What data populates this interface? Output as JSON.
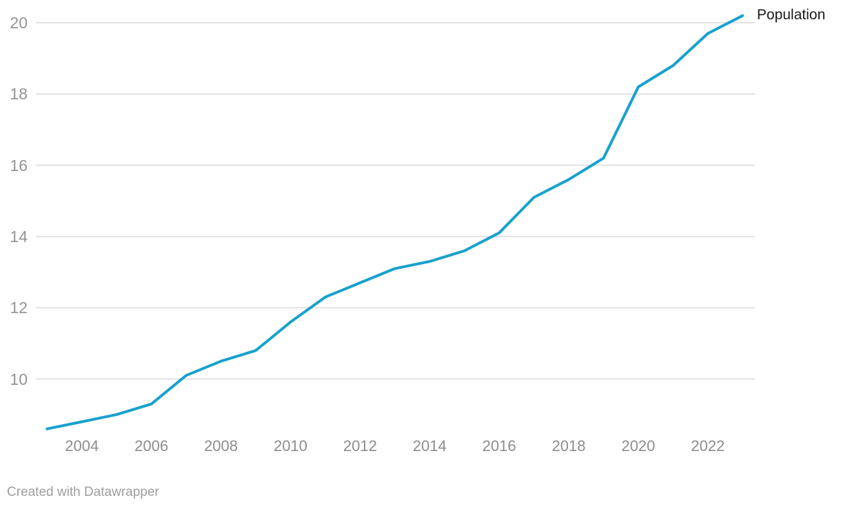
{
  "chart_data": {
    "type": "line",
    "title": "",
    "xlabel": "",
    "ylabel": "",
    "x": [
      2003,
      2004,
      2005,
      2006,
      2007,
      2008,
      2009,
      2010,
      2011,
      2012,
      2013,
      2014,
      2015,
      2016,
      2017,
      2018,
      2019,
      2020,
      2021,
      2022,
      2023
    ],
    "series": [
      {
        "name": "Population",
        "values": [
          8.6,
          8.8,
          9.0,
          9.3,
          10.1,
          10.5,
          10.8,
          11.6,
          12.3,
          12.7,
          13.1,
          13.3,
          13.6,
          14.1,
          15.1,
          15.6,
          16.2,
          18.2,
          18.8,
          19.7,
          20.2
        ]
      }
    ],
    "y_ticks": [
      10,
      12,
      14,
      16,
      18,
      20
    ],
    "x_ticks": [
      2004,
      2006,
      2008,
      2010,
      2012,
      2014,
      2016,
      2018,
      2020,
      2022
    ],
    "ylim": [
      8.45,
      20.35
    ],
    "xlim": [
      2002.6,
      2023.4
    ],
    "grid": "horizontal-only",
    "legend_position": "line-end-label"
  },
  "colors": {
    "line": "#18a1cd",
    "grid": "#e2e2e2",
    "tick_text": "#8d8d8d",
    "ytick_text": "#949494",
    "series_label_text": "#1a1a1a",
    "footer_text": "#9e9e9e",
    "background": "#ffffff"
  },
  "footer": {
    "attribution": "Created with Datawrapper"
  }
}
